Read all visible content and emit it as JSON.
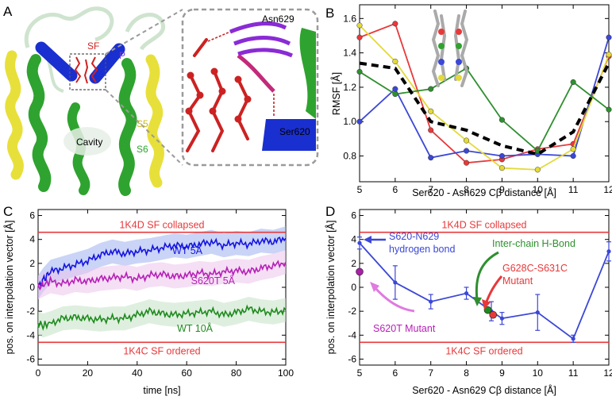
{
  "figure": {
    "panel_labels": [
      "A",
      "B",
      "C",
      "D"
    ]
  },
  "panel_a": {
    "labels": {
      "sf": "SF",
      "p": "P",
      "s5": "S5",
      "s6": "S6",
      "cavity": "Cavity",
      "asn": "Asn629",
      "ser": "Ser620"
    },
    "colors": {
      "s5": "#e8e03a",
      "s6": "#2fa32f",
      "p": "#1a2fd0",
      "loops": "#cfe4cf",
      "sf": "#cc2222",
      "asn": "#8a2bd6",
      "ser": "#1a2fd0"
    }
  },
  "colors": {
    "red": "#e8383a",
    "blue": "#3b47d6",
    "yellow": "#e3da3a",
    "green": "#2f8f2f",
    "magenta": "#c23dc2",
    "black": "#000000"
  },
  "chart_data": [
    {
      "panel": "B",
      "type": "line",
      "xlabel": "Ser620 - Asn629 Cβ distance [Å]",
      "ylabel": "RMSF [Å]",
      "xlim": [
        5,
        12
      ],
      "ylim": [
        0.65,
        1.68
      ],
      "xticks": [
        5,
        6,
        7,
        8,
        9,
        10,
        11,
        12
      ],
      "yticks": [
        0.8,
        1.0,
        1.2,
        1.4,
        1.6
      ],
      "grid": false,
      "series": [
        {
          "color": "#e8383a",
          "x": [
            5,
            6,
            7,
            8,
            9,
            10,
            11,
            12
          ],
          "values": [
            1.49,
            1.57,
            0.95,
            0.76,
            0.78,
            0.84,
            0.87,
            1.38
          ]
        },
        {
          "color": "#3b47d6",
          "x": [
            5,
            6,
            7,
            8,
            9,
            10,
            11,
            12
          ],
          "values": [
            1.0,
            1.19,
            0.79,
            0.83,
            0.8,
            0.81,
            0.8,
            1.49
          ]
        },
        {
          "color": "#e3da3a",
          "x": [
            5,
            6,
            7,
            8,
            9,
            10,
            11,
            12
          ],
          "values": [
            1.56,
            1.35,
            1.06,
            0.89,
            0.73,
            0.72,
            0.84,
            1.39
          ]
        },
        {
          "color": "#2f8f2f",
          "x": [
            5,
            6,
            7,
            8,
            9,
            10,
            11,
            12
          ],
          "values": [
            1.29,
            1.16,
            1.19,
            1.31,
            1.01,
            0.83,
            1.23,
            1.07
          ]
        },
        {
          "color": "#000000",
          "dashed": true,
          "x": [
            5,
            6,
            7,
            8,
            9,
            10,
            11,
            12
          ],
          "values": [
            1.34,
            1.31,
            1.0,
            0.95,
            0.86,
            0.81,
            0.94,
            1.34
          ]
        }
      ]
    },
    {
      "panel": "C",
      "type": "line",
      "xlabel": "time [ns]",
      "ylabel": "pos. on interpolation vector [Å]",
      "xlim": [
        0,
        100
      ],
      "ylim": [
        -6.5,
        6.5
      ],
      "xticks": [
        0,
        20,
        40,
        60,
        80,
        100
      ],
      "yticks": [
        -6,
        -4,
        -2,
        0,
        2,
        4,
        6
      ],
      "grid": false,
      "reference_lines": [
        {
          "y": 4.6,
          "label": "1K4D SF   collapsed",
          "color": "#e8383a"
        },
        {
          "y": -4.6,
          "label": "1K4C SF   ordered",
          "color": "#e8383a"
        }
      ],
      "series": [
        {
          "name": "WT 5Å",
          "color": "#1414e0",
          "band": "#9fb0ee",
          "x": [
            0,
            2,
            5,
            10,
            15,
            20,
            25,
            30,
            35,
            40,
            45,
            50,
            55,
            60,
            65,
            70,
            75,
            80,
            85,
            90,
            95,
            100
          ],
          "values": [
            0.0,
            0.6,
            1.3,
            1.6,
            1.9,
            2.2,
            2.7,
            3.0,
            2.8,
            3.0,
            3.1,
            3.3,
            3.5,
            3.4,
            3.6,
            3.8,
            3.5,
            3.7,
            3.6,
            3.9,
            3.8,
            4.1
          ]
        },
        {
          "name": "S620T 5Å",
          "color": "#b61fb6",
          "band": "#ecc4ec",
          "x": [
            0,
            2,
            5,
            10,
            15,
            20,
            25,
            30,
            35,
            40,
            45,
            50,
            55,
            60,
            65,
            70,
            75,
            80,
            85,
            90,
            95,
            100
          ],
          "values": [
            0.0,
            0.2,
            0.5,
            0.3,
            0.6,
            0.5,
            0.7,
            0.8,
            0.9,
            0.7,
            1.0,
            1.1,
            0.9,
            1.0,
            1.2,
            1.1,
            1.3,
            1.4,
            1.3,
            1.6,
            1.8,
            2.1
          ]
        },
        {
          "name": "WT 10Å",
          "color": "#1e8a1e",
          "band": "#c4e2c4",
          "x": [
            0,
            2,
            5,
            10,
            15,
            20,
            25,
            30,
            35,
            40,
            45,
            50,
            55,
            60,
            65,
            70,
            75,
            80,
            85,
            90,
            95,
            100
          ],
          "values": [
            -3.0,
            -3.2,
            -3.0,
            -2.6,
            -2.5,
            -2.6,
            -2.7,
            -2.6,
            -2.6,
            -2.3,
            -2.0,
            -2.2,
            -2.3,
            -2.2,
            -2.1,
            -2.0,
            -2.3,
            -2.1,
            -1.8,
            -2.0,
            -2.1,
            -1.9
          ]
        }
      ]
    },
    {
      "panel": "D",
      "type": "line",
      "xlabel": "Ser620 - Asn629 Cβ distance [Å]",
      "ylabel": "pos. on interpolation vector [Å]",
      "xlim": [
        5,
        12
      ],
      "ylim": [
        -6.5,
        6.5
      ],
      "xticks": [
        5,
        6,
        7,
        8,
        9,
        10,
        11,
        12
      ],
      "yticks": [
        -6,
        -4,
        -2,
        0,
        2,
        4,
        6
      ],
      "grid": false,
      "reference_lines": [
        {
          "y": 4.6,
          "label": "1K4D SF   collapsed",
          "color": "#e8383a"
        },
        {
          "y": -4.6,
          "label": "1K4C SF   ordered",
          "color": "#e8383a"
        }
      ],
      "series": [
        {
          "color": "#3b47d6",
          "x": [
            5,
            6,
            7,
            8,
            8.7,
            9,
            10,
            11,
            12
          ],
          "values": [
            3.7,
            0.4,
            -1.2,
            -0.5,
            -2.0,
            -2.6,
            -2.1,
            -4.3,
            3.0
          ],
          "errors": [
            0.5,
            1.4,
            0.6,
            0.5,
            0.8,
            0.5,
            1.5,
            0.3,
            0.8
          ]
        }
      ],
      "points": [
        {
          "x": 5.0,
          "y": 1.3,
          "color": "#a81fa8"
        },
        {
          "x": 8.6,
          "y": -1.9,
          "color": "#1e8a1e"
        },
        {
          "x": 8.75,
          "y": -2.3,
          "color": "#e8383a"
        }
      ],
      "annotations": {
        "hbond": [
          "S620-N629",
          "hydrogen bond"
        ],
        "interchain": "Inter-chain H-Bond",
        "mutant_gc": [
          "G628C-S631C",
          "Mutant"
        ],
        "mutant_st": "S620T Mutant"
      }
    }
  ]
}
